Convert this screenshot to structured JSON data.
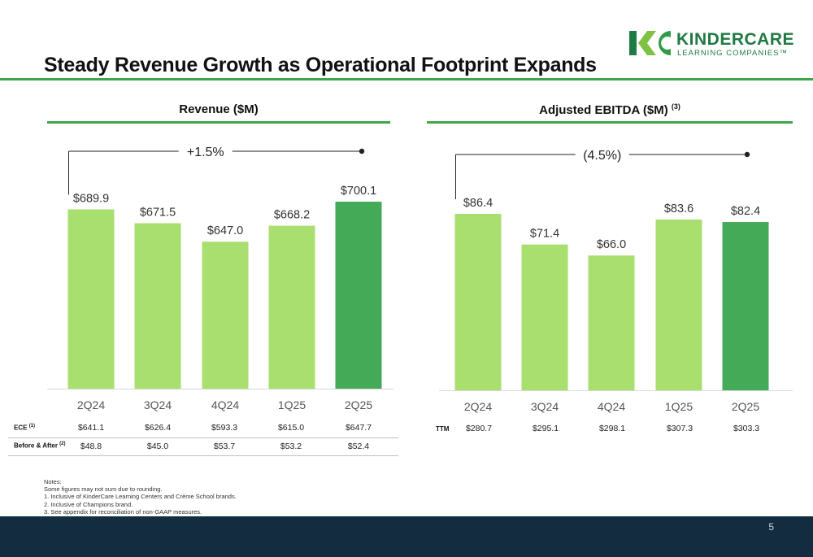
{
  "title": "Steady Revenue Growth as Operational Footprint Expands",
  "logo": {
    "line1": "KINDERCARE",
    "line2": "LEARNING COMPANIES™"
  },
  "page_number": "5",
  "colors": {
    "bar_light": "#a8df6f",
    "bar_dark": "#44aa57",
    "rule_green": "#3aa84a",
    "footer_navy": "#132c40"
  },
  "chart_data": [
    {
      "type": "bar",
      "title": "Revenue ($M)",
      "categories": [
        "2Q24",
        "3Q24",
        "4Q24",
        "1Q25",
        "2Q25"
      ],
      "values": [
        689.9,
        671.5,
        647.0,
        668.2,
        700.1
      ],
      "value_labels": [
        "$689.9",
        "$671.5",
        "$647.0",
        "$668.2",
        "$700.1"
      ],
      "highlight_index": 4,
      "ylim": [
        452,
        700.1
      ],
      "change_label": "+1.5%",
      "table": [
        {
          "label": "ECE",
          "sup": "(1)",
          "values": [
            "$641.1",
            "$626.4",
            "$593.3",
            "$615.0",
            "$647.7"
          ]
        },
        {
          "label": "Before & After",
          "sup": "(2)",
          "values": [
            "$48.8",
            "$45.0",
            "$53.7",
            "$53.2",
            "$52.4"
          ]
        }
      ]
    },
    {
      "type": "bar",
      "title": "Adjusted EBITDA ($M)",
      "title_sup": "(3)",
      "categories": [
        "2Q24",
        "3Q24",
        "4Q24",
        "1Q25",
        "2Q25"
      ],
      "values": [
        86.4,
        71.4,
        66.0,
        83.6,
        82.4
      ],
      "value_labels": [
        "$86.4",
        "$71.4",
        "$66.0",
        "$83.6",
        "$82.4"
      ],
      "highlight_index": 4,
      "ylim": [
        0,
        86.4
      ],
      "change_label": "(4.5%)",
      "table": [
        {
          "label": "TTM",
          "sup": "",
          "values": [
            "$280.7",
            "$295.1",
            "$298.1",
            "$307.3",
            "$303.3"
          ]
        }
      ]
    }
  ],
  "notes": [
    "Notes:",
    "Some figures may not sum due to rounding.",
    "1. Inclusive of KinderCare Learning Centers and Crème School brands.",
    "2. Inclusive of Champions brand.",
    "3. See appendix for reconciliation of non-GAAP measures."
  ]
}
